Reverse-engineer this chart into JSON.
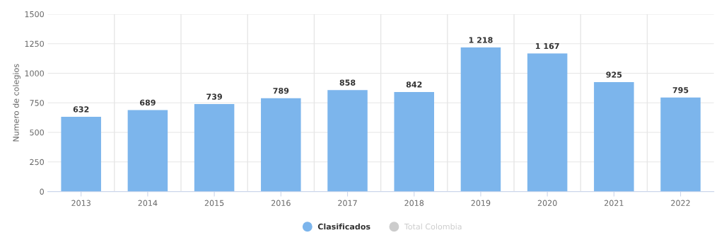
{
  "chart_data": {
    "type": "bar",
    "ylabel": "Numero de colegios",
    "categories": [
      "2013",
      "2014",
      "2015",
      "2016",
      "2017",
      "2018",
      "2019",
      "2020",
      "2021",
      "2022"
    ],
    "series": [
      {
        "name": "Clasificados",
        "color": "#7cb5ec",
        "values": [
          632,
          689,
          739,
          789,
          858,
          842,
          1218,
          1167,
          925,
          795
        ],
        "value_labels": [
          "632",
          "689",
          "739",
          "789",
          "858",
          "842",
          "1 218",
          "1 167",
          "925",
          "795"
        ]
      },
      {
        "name": "Total Colombia",
        "color": "#cccccc",
        "values": [
          null,
          null,
          null,
          null,
          null,
          null,
          null,
          null,
          null,
          null
        ]
      }
    ],
    "ylim": [
      0,
      1500
    ],
    "yticks": [
      0,
      250,
      500,
      750,
      1000,
      1250,
      1500
    ],
    "grid": true,
    "legend": "bottom"
  }
}
